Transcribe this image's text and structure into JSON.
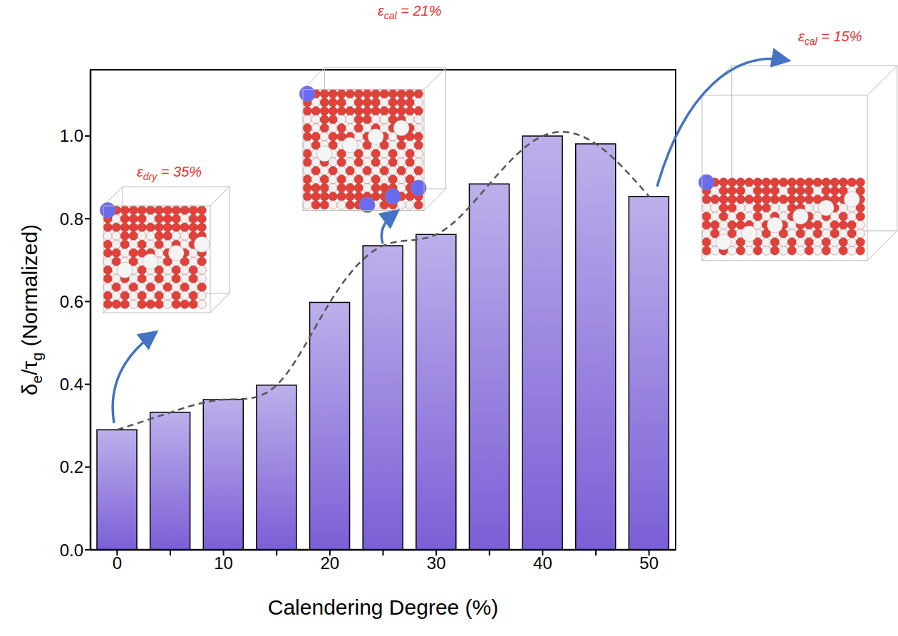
{
  "chart_data": {
    "type": "bar",
    "x_label": "Calendering Degree (%)",
    "y_label": "δe/τg (Normalized)",
    "categories": [
      "0",
      null,
      "10",
      null,
      "20",
      null,
      "30",
      null,
      "40",
      null,
      "50"
    ],
    "values": [
      0.29,
      0.332,
      0.363,
      0.398,
      0.598,
      0.735,
      0.762,
      0.884,
      1.0,
      0.981,
      0.854
    ],
    "color": "#7b5fd6",
    "series": [
      {
        "type": "line",
        "line_style": "dashed",
        "marker": "none",
        "color": "#555555",
        "values": [
          0.29,
          0.332,
          0.363,
          0.398,
          0.598,
          0.735,
          0.762,
          0.884,
          1.0,
          0.981,
          0.854
        ]
      }
    ],
    "ylim": [
      0,
      1.16
    ],
    "yticks": [
      {
        "value": 0,
        "label": "0.0"
      },
      0.2,
      0.4,
      0.6,
      0.8,
      {
        "value": 1,
        "label": "1.0"
      }
    ],
    "grid": false,
    "annotations": [
      "εdry = 35%",
      "εcal = 21%",
      "εcal = 15%"
    ]
  }
}
